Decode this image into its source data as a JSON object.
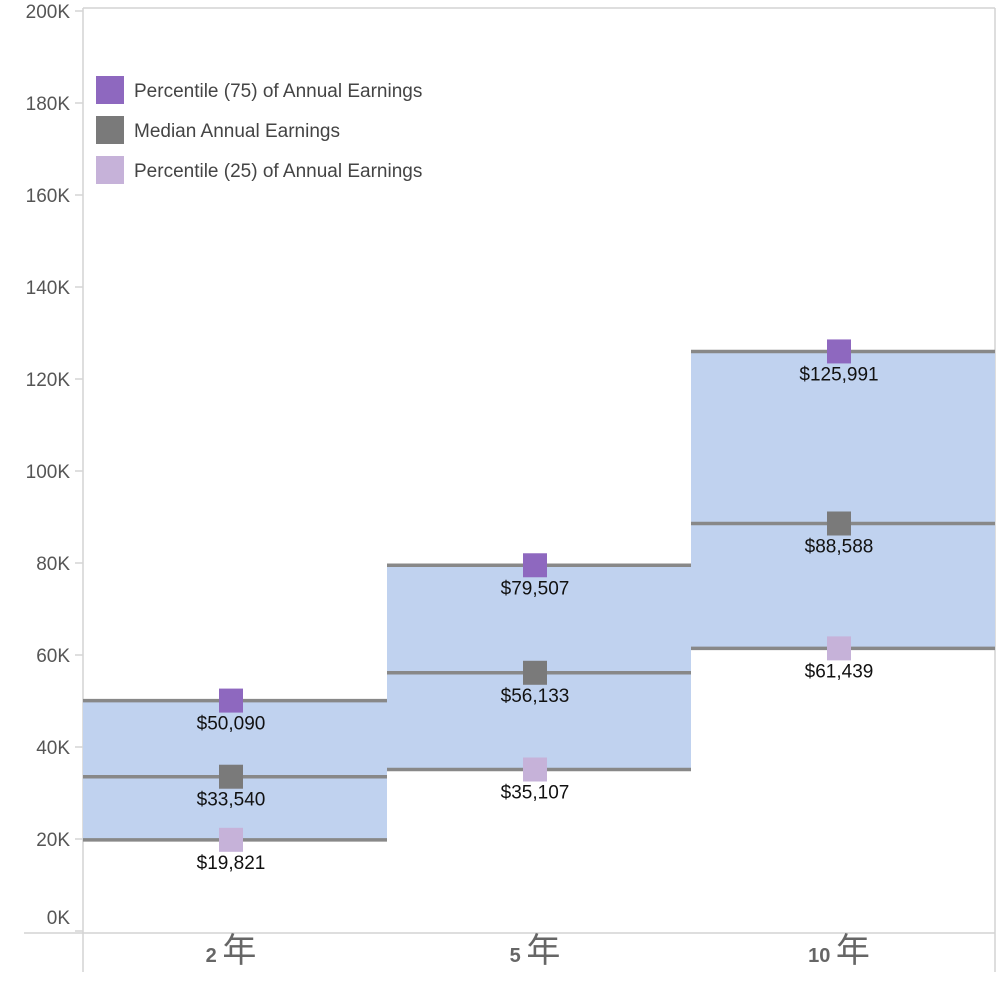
{
  "chart_data": {
    "type": "box",
    "title": "",
    "xlabel": "",
    "ylabel": "",
    "ylim": [
      0,
      200000
    ],
    "categories": [
      {
        "num": "2",
        "unit": "年"
      },
      {
        "num": "5",
        "unit": "年"
      },
      {
        "num": "10",
        "unit": "年"
      }
    ],
    "y_ticks": [
      {
        "value": 0,
        "label": "0K"
      },
      {
        "value": 20000,
        "label": "20K"
      },
      {
        "value": 40000,
        "label": "40K"
      },
      {
        "value": 60000,
        "label": "60K"
      },
      {
        "value": 80000,
        "label": "80K"
      },
      {
        "value": 100000,
        "label": "100K"
      },
      {
        "value": 120000,
        "label": "120K"
      },
      {
        "value": 140000,
        "label": "140K"
      },
      {
        "value": 160000,
        "label": "160K"
      },
      {
        "value": 180000,
        "label": "180K"
      },
      {
        "value": 200000,
        "label": "200K"
      }
    ],
    "series": [
      {
        "key": "p75",
        "name": "Percentile (75) of Annual Earnings",
        "color": "#8e68bf",
        "values": [
          50090,
          79507,
          125991
        ],
        "labels": [
          "$50,090",
          "$79,507",
          "$125,991"
        ]
      },
      {
        "key": "median",
        "name": "Median Annual Earnings",
        "color": "#7a7a7a",
        "values": [
          33540,
          56133,
          88588
        ],
        "labels": [
          "$33,540",
          "$56,133",
          "$88,588"
        ]
      },
      {
        "key": "p25",
        "name": "Percentile (25) of Annual Earnings",
        "color": "#c6b2d9",
        "values": [
          19821,
          35107,
          61439
        ],
        "labels": [
          "$19,821",
          "$35,107",
          "$61,439"
        ]
      }
    ],
    "colors": {
      "band_fill": "#c0d2ef",
      "band_line": "#888888",
      "axis": "#d4d4d4"
    },
    "legend_position": "top-left"
  }
}
